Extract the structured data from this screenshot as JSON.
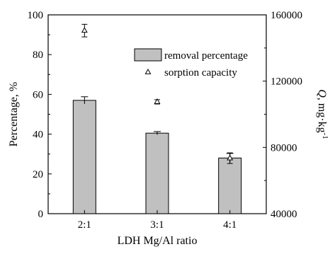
{
  "chart_data": {
    "type": "bar",
    "categories": [
      "2:1",
      "3:1",
      "4:1"
    ],
    "xlabel": "LDH Mg/Al ratio",
    "left_axis": {
      "label": "Percentage, %",
      "range": [
        0,
        100
      ],
      "ticks": [
        "0",
        "20",
        "40",
        "60",
        "80",
        "100"
      ]
    },
    "right_axis": {
      "label_main": "Q",
      "label_unit": ", mg·kg",
      "label_exponent": "-1",
      "range": [
        40000,
        160000
      ],
      "ticks": [
        "40000",
        "80000",
        "120000",
        "160000"
      ]
    },
    "series": [
      {
        "name": "removal percentage",
        "type": "bar",
        "axis": "left",
        "values": [
          57,
          40.5,
          28
        ],
        "error": [
          1.8,
          0.8,
          2.3
        ],
        "color": "#c0c0c0"
      },
      {
        "name": "sorption capacity",
        "type": "scatter",
        "marker": "open-triangle",
        "axis": "right",
        "values": [
          150500,
          107500,
          73500
        ],
        "error": [
          3800,
          1300,
          3200
        ]
      }
    ],
    "legend_position": "top-right",
    "grid": false
  }
}
